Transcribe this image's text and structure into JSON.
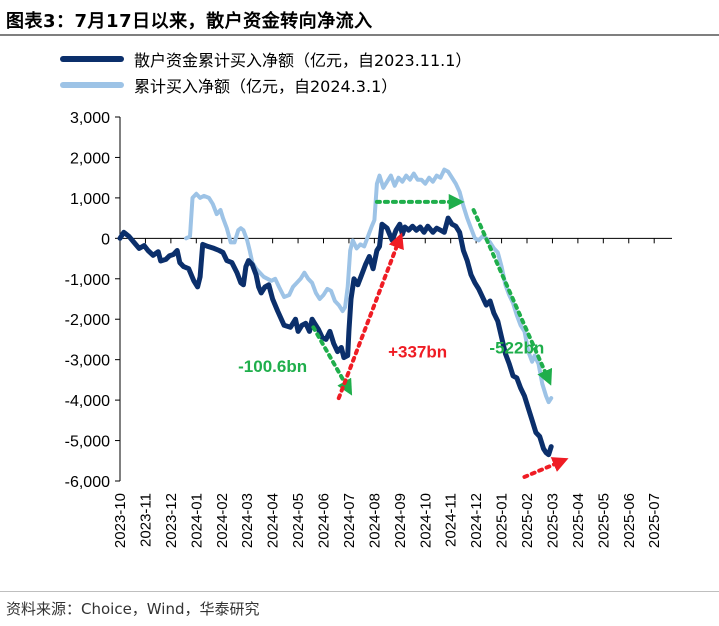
{
  "title": "图表3：7月17日以来，散户资金转向净流入",
  "source": "资料来源：Choice，Wind，华泰研究",
  "colors": {
    "dark": "#0b2f6b",
    "light": "#9dc3e6",
    "green": "#1fae4b",
    "red": "#ef1c24"
  },
  "chart_data": {
    "type": "line",
    "ylim": [
      -6000,
      3000
    ],
    "yticks": [
      "3,000",
      "2,000",
      "1,000",
      "0",
      "-1,000",
      "-2,000",
      "-3,000",
      "-4,000",
      "-5,000",
      "-6,000"
    ],
    "ytick_values": [
      3000,
      2000,
      1000,
      0,
      -1000,
      -2000,
      -3000,
      -4000,
      -5000,
      -6000
    ],
    "categories": [
      "2023-10",
      "2023-11",
      "2023-12",
      "2024-01",
      "2024-02",
      "2024-03",
      "2024-04",
      "2024-05",
      "2024-06",
      "2024-07",
      "2024-08",
      "2024-09",
      "2024-10",
      "2024-11",
      "2024-12",
      "2025-01",
      "2025-02",
      "2025-03",
      "2025-04",
      "2025-05",
      "2025-06",
      "2025-07"
    ],
    "series": [
      {
        "name": "散户资金累计买入净额（亿元，自2023.11.1）",
        "color": "#0b2f6b",
        "points": [
          [
            0,
            0
          ],
          [
            0.15,
            150
          ],
          [
            0.35,
            50
          ],
          [
            0.55,
            -100
          ],
          [
            0.75,
            -250
          ],
          [
            0.95,
            -180
          ],
          [
            1.1,
            -300
          ],
          [
            1.3,
            -420
          ],
          [
            1.5,
            -330
          ],
          [
            1.6,
            -560
          ],
          [
            1.8,
            -520
          ],
          [
            1.95,
            -430
          ],
          [
            2.1,
            -400
          ],
          [
            2.25,
            -300
          ],
          [
            2.35,
            -600
          ],
          [
            2.5,
            -700
          ],
          [
            2.7,
            -750
          ],
          [
            2.9,
            -1050
          ],
          [
            3.05,
            -1200
          ],
          [
            3.15,
            -950
          ],
          [
            3.25,
            -150
          ],
          [
            3.45,
            -200
          ],
          [
            3.7,
            -250
          ],
          [
            3.9,
            -300
          ],
          [
            4.05,
            -350
          ],
          [
            4.2,
            -550
          ],
          [
            4.4,
            -600
          ],
          [
            4.6,
            -850
          ],
          [
            4.75,
            -1100
          ],
          [
            4.85,
            -1150
          ],
          [
            4.95,
            -700
          ],
          [
            5.05,
            -550
          ],
          [
            5.2,
            -650
          ],
          [
            5.35,
            -900
          ],
          [
            5.45,
            -1200
          ],
          [
            5.55,
            -1350
          ],
          [
            5.7,
            -1200
          ],
          [
            5.85,
            -1150
          ],
          [
            6.0,
            -1500
          ],
          [
            6.2,
            -1800
          ],
          [
            6.45,
            -2150
          ],
          [
            6.7,
            -2200
          ],
          [
            6.9,
            -2000
          ],
          [
            7.0,
            -2300
          ],
          [
            7.15,
            -2150
          ],
          [
            7.3,
            -2100
          ],
          [
            7.45,
            -2300
          ],
          [
            7.55,
            -2000
          ],
          [
            7.65,
            -2100
          ],
          [
            7.8,
            -2250
          ],
          [
            7.95,
            -2450
          ],
          [
            8.1,
            -2500
          ],
          [
            8.25,
            -2300
          ],
          [
            8.4,
            -2600
          ],
          [
            8.55,
            -2800
          ],
          [
            8.7,
            -2700
          ],
          [
            8.8,
            -2950
          ],
          [
            8.95,
            -2900
          ],
          [
            9.0,
            -2300
          ],
          [
            9.08,
            -1500
          ],
          [
            9.2,
            -1000
          ],
          [
            9.35,
            -1150
          ],
          [
            9.5,
            -900
          ],
          [
            9.65,
            -650
          ],
          [
            9.8,
            -450
          ],
          [
            9.95,
            -750
          ],
          [
            10.1,
            -300
          ],
          [
            10.2,
            -200
          ],
          [
            10.3,
            350
          ],
          [
            10.4,
            300
          ],
          [
            10.5,
            250
          ],
          [
            10.6,
            100
          ],
          [
            10.7,
            -50
          ],
          [
            10.85,
            200
          ],
          [
            11.0,
            350
          ],
          [
            11.1,
            100
          ],
          [
            11.2,
            280
          ],
          [
            11.35,
            200
          ],
          [
            11.5,
            300
          ],
          [
            11.65,
            200
          ],
          [
            11.8,
            280
          ],
          [
            11.95,
            150
          ],
          [
            12.1,
            300
          ],
          [
            12.3,
            150
          ],
          [
            12.45,
            250
          ],
          [
            12.6,
            200
          ],
          [
            12.75,
            150
          ],
          [
            12.9,
            500
          ],
          [
            13.05,
            350
          ],
          [
            13.2,
            300
          ],
          [
            13.35,
            150
          ],
          [
            13.5,
            -300
          ],
          [
            13.65,
            -550
          ],
          [
            13.8,
            -900
          ],
          [
            13.95,
            -1100
          ],
          [
            14.1,
            -1250
          ],
          [
            14.25,
            -1450
          ],
          [
            14.4,
            -1650
          ],
          [
            14.55,
            -1550
          ],
          [
            14.7,
            -1850
          ],
          [
            14.85,
            -2050
          ],
          [
            15.0,
            -2450
          ],
          [
            15.15,
            -2850
          ],
          [
            15.3,
            -3100
          ],
          [
            15.45,
            -3400
          ],
          [
            15.6,
            -3450
          ],
          [
            15.75,
            -3700
          ],
          [
            15.9,
            -3900
          ],
          [
            16.05,
            -4200
          ],
          [
            16.2,
            -4500
          ],
          [
            16.35,
            -4800
          ],
          [
            16.5,
            -4900
          ],
          [
            16.65,
            -5200
          ],
          [
            16.75,
            -5300
          ],
          [
            16.85,
            -5350
          ],
          [
            16.95,
            -5150
          ]
        ]
      },
      {
        "name": "累计买入净额（亿元，自2024.3.1）",
        "color": "#9dc3e6",
        "points": [
          [
            2.6,
            0
          ],
          [
            2.75,
            50
          ],
          [
            2.85,
            1000
          ],
          [
            3.0,
            1100
          ],
          [
            3.15,
            1000
          ],
          [
            3.3,
            1050
          ],
          [
            3.5,
            1000
          ],
          [
            3.65,
            850
          ],
          [
            3.8,
            600
          ],
          [
            3.95,
            700
          ],
          [
            4.05,
            500
          ],
          [
            4.2,
            250
          ],
          [
            4.35,
            -100
          ],
          [
            4.5,
            -100
          ],
          [
            4.65,
            200
          ],
          [
            4.75,
            250
          ],
          [
            4.85,
            200
          ],
          [
            5.0,
            -50
          ],
          [
            5.1,
            -300
          ],
          [
            5.2,
            -600
          ],
          [
            5.35,
            -750
          ],
          [
            5.5,
            -850
          ],
          [
            5.65,
            -950
          ],
          [
            5.8,
            -1000
          ],
          [
            5.95,
            -1050
          ],
          [
            6.1,
            -1000
          ],
          [
            6.25,
            -1200
          ],
          [
            6.45,
            -1450
          ],
          [
            6.65,
            -1400
          ],
          [
            6.8,
            -1200
          ],
          [
            6.95,
            -1100
          ],
          [
            7.1,
            -1000
          ],
          [
            7.25,
            -850
          ],
          [
            7.4,
            -1000
          ],
          [
            7.55,
            -1100
          ],
          [
            7.7,
            -1350
          ],
          [
            7.85,
            -1500
          ],
          [
            8.0,
            -1400
          ],
          [
            8.15,
            -1250
          ],
          [
            8.3,
            -1300
          ],
          [
            8.45,
            -1550
          ],
          [
            8.6,
            -1650
          ],
          [
            8.75,
            -1800
          ],
          [
            8.85,
            -1700
          ],
          [
            8.95,
            -1200
          ],
          [
            9.05,
            -300
          ],
          [
            9.15,
            -50
          ],
          [
            9.3,
            -250
          ],
          [
            9.45,
            -150
          ],
          [
            9.6,
            -200
          ],
          [
            9.75,
            50
          ],
          [
            9.9,
            300
          ],
          [
            10.0,
            450
          ],
          [
            10.1,
            1350
          ],
          [
            10.2,
            1550
          ],
          [
            10.35,
            1250
          ],
          [
            10.5,
            1400
          ],
          [
            10.65,
            1550
          ],
          [
            10.8,
            1300
          ],
          [
            10.95,
            1500
          ],
          [
            11.1,
            1400
          ],
          [
            11.25,
            1550
          ],
          [
            11.4,
            1450
          ],
          [
            11.55,
            1600
          ],
          [
            11.7,
            1450
          ],
          [
            11.85,
            1450
          ],
          [
            12.0,
            1350
          ],
          [
            12.15,
            1500
          ],
          [
            12.3,
            1400
          ],
          [
            12.45,
            1550
          ],
          [
            12.6,
            1500
          ],
          [
            12.75,
            1700
          ],
          [
            12.9,
            1650
          ],
          [
            13.05,
            1500
          ],
          [
            13.2,
            1350
          ],
          [
            13.35,
            1150
          ],
          [
            13.5,
            800
          ],
          [
            13.65,
            500
          ],
          [
            13.8,
            250
          ],
          [
            13.95,
            0
          ],
          [
            14.1,
            -50
          ],
          [
            14.25,
            50
          ],
          [
            14.4,
            0
          ],
          [
            14.55,
            -100
          ],
          [
            14.7,
            -250
          ],
          [
            14.85,
            -350
          ],
          [
            15.0,
            -700
          ],
          [
            15.15,
            -1150
          ],
          [
            15.3,
            -1400
          ],
          [
            15.45,
            -1600
          ],
          [
            15.6,
            -1900
          ],
          [
            15.75,
            -2150
          ],
          [
            15.9,
            -2300
          ],
          [
            16.05,
            -2800
          ],
          [
            16.2,
            -3050
          ],
          [
            16.3,
            -2900
          ],
          [
            16.45,
            -3100
          ],
          [
            16.6,
            -3600
          ],
          [
            16.75,
            -3900
          ],
          [
            16.85,
            -4050
          ],
          [
            16.95,
            -3950
          ]
        ]
      }
    ],
    "annotations": [
      {
        "text": "-100.6bn",
        "x": 6.0,
        "y": -3300,
        "color": "#1fae4b"
      },
      {
        "text": "+337bn",
        "x": 11.7,
        "y": -2950,
        "color": "#ef1c24"
      },
      {
        "text": "-522bn",
        "x": 15.6,
        "y": -2850,
        "color": "#1fae4b"
      }
    ],
    "arrows": [
      {
        "from": [
          7.6,
          -2200
        ],
        "to": [
          9.0,
          -3750
        ],
        "color": "#1fae4b"
      },
      {
        "from": [
          8.6,
          -3950
        ],
        "to": [
          11.0,
          0
        ],
        "color": "#ef1c24"
      },
      {
        "from": [
          10.1,
          900
        ],
        "to": [
          13.3,
          900
        ],
        "color": "#1fae4b"
      },
      {
        "from": [
          13.9,
          700
        ],
        "to": [
          16.85,
          -3500
        ],
        "color": "#1fae4b"
      },
      {
        "from": [
          15.9,
          -5900
        ],
        "to": [
          17.4,
          -5500
        ],
        "color": "#ef1c24"
      }
    ]
  }
}
